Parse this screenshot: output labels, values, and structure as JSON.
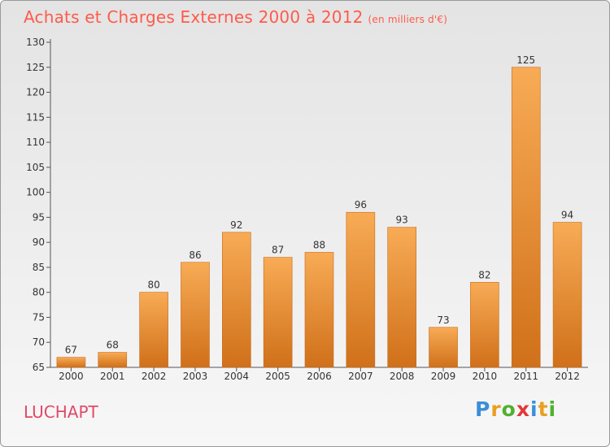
{
  "header": {
    "title": "Achats et Charges Externes 2000 à 2012",
    "unit": "(en milliers d'€)"
  },
  "footer": {
    "place": "LUCHAPT",
    "logo": "Proxiti",
    "logo_colors": [
      "#3a8fd8",
      "#e8a020",
      "#50b030",
      "#e03a3a",
      "#3a8fd8",
      "#e8a020",
      "#50b030"
    ]
  },
  "colors": {
    "bar_light": "#f8ab55",
    "bar_dark": "#d0701a",
    "title": "#ff5a4a",
    "place": "#e04a6a"
  },
  "chart_data": {
    "type": "bar",
    "title": "Achats et Charges Externes 2000 à 2012",
    "subtitle": "(en milliers d'€)",
    "xlabel": "",
    "ylabel": "",
    "categories": [
      "2000",
      "2001",
      "2002",
      "2003",
      "2004",
      "2005",
      "2006",
      "2007",
      "2008",
      "2009",
      "2010",
      "2011",
      "2012"
    ],
    "values": [
      67,
      68,
      80,
      86,
      92,
      87,
      88,
      96,
      93,
      73,
      82,
      125,
      94
    ],
    "ylim": [
      65,
      130
    ],
    "yticks": [
      65,
      70,
      75,
      80,
      85,
      90,
      95,
      100,
      105,
      110,
      115,
      120,
      125,
      130
    ],
    "grid": false,
    "data_labels": true
  }
}
